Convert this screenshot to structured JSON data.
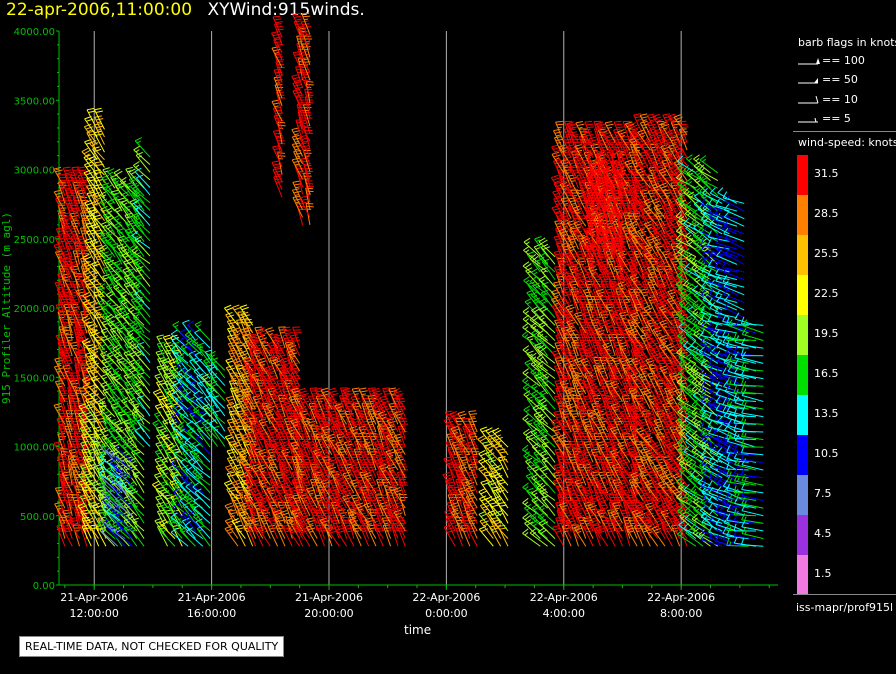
{
  "header": {
    "datetime": "22-apr-2006,11:00:00",
    "product": "XYWind:915winds."
  },
  "chart_data": {
    "type": "wind-barb",
    "xlabel": "time",
    "ylabel": "915 Profiler Altitude (m agl)",
    "ylim": [
      0,
      4000
    ],
    "yticks": [
      {
        "value": 0,
        "label": "0.00"
      },
      {
        "value": 500,
        "label": "500.00"
      },
      {
        "value": 1000,
        "label": "1000.00"
      },
      {
        "value": 1500,
        "label": "1500.00"
      },
      {
        "value": 2000,
        "label": "2000.00"
      },
      {
        "value": 2500,
        "label": "2500.00"
      },
      {
        "value": 3000,
        "label": "3000.00"
      },
      {
        "value": 3500,
        "label": "3500.00"
      },
      {
        "value": 4000,
        "label": "4000.00"
      }
    ],
    "xlim_hours": [
      10.8,
      35.3
    ],
    "xticks": [
      {
        "hours": 12,
        "date": "21-Apr-2006",
        "time": "12:00:00"
      },
      {
        "hours": 16,
        "date": "21-Apr-2006",
        "time": "16:00:00"
      },
      {
        "hours": 20,
        "date": "21-Apr-2006",
        "time": "20:00:00"
      },
      {
        "hours": 24,
        "date": "22-Apr-2006",
        "time": "0:00:00"
      },
      {
        "hours": 28,
        "date": "22-Apr-2006",
        "time": "4:00:00"
      },
      {
        "hours": 32,
        "date": "22-Apr-2006",
        "time": "8:00:00"
      }
    ],
    "grid": "vertical",
    "wind_regions": [
      {
        "h0": 11.0,
        "h1": 11.8,
        "z0": 280,
        "z1": 2900,
        "speed": 31,
        "dir": 200
      },
      {
        "h0": 11.9,
        "h1": 12.6,
        "z0": 280,
        "z1": 1200,
        "speed": 22,
        "dir": 210
      },
      {
        "h0": 12.1,
        "h1": 12.5,
        "z0": 1200,
        "z1": 3300,
        "speed": 24,
        "dir": 215
      },
      {
        "h0": 12.7,
        "h1": 13.7,
        "z0": 280,
        "z1": 2900,
        "speed": 18,
        "dir": 220
      },
      {
        "h0": 12.8,
        "h1": 13.3,
        "z0": 280,
        "z1": 900,
        "speed": 10,
        "dir": 230
      },
      {
        "h0": 13.9,
        "h1": 14.1,
        "z0": 1000,
        "z1": 3100,
        "speed": 17,
        "dir": 225
      },
      {
        "h0": 14.5,
        "h1": 15.0,
        "z0": 280,
        "z1": 1700,
        "speed": 20,
        "dir": 215
      },
      {
        "h0": 15.2,
        "h1": 16.0,
        "z0": 280,
        "z1": 1800,
        "speed": 14,
        "dir": 225
      },
      {
        "h0": 16.2,
        "h1": 16.6,
        "z0": 1000,
        "z1": 1600,
        "speed": 16,
        "dir": 220
      },
      {
        "h0": 16.9,
        "h1": 17.4,
        "z0": 280,
        "z1": 1900,
        "speed": 26,
        "dir": 210
      },
      {
        "h0": 17.5,
        "h1": 19.0,
        "z0": 280,
        "z1": 1750,
        "speed": 31,
        "dir": 205
      },
      {
        "h0": 18.4,
        "h1": 18.6,
        "z0": 2800,
        "z1": 4000,
        "speed": 31,
        "dir": 200
      },
      {
        "h0": 19.1,
        "h1": 19.5,
        "z0": 2600,
        "z1": 4000,
        "speed": 31,
        "dir": 200
      },
      {
        "h0": 19.1,
        "h1": 22.7,
        "z0": 280,
        "z1": 1300,
        "speed": 31,
        "dir": 205
      },
      {
        "h0": 24.3,
        "h1": 25.2,
        "z0": 280,
        "z1": 1150,
        "speed": 31,
        "dir": 205
      },
      {
        "h0": 25.6,
        "h1": 26.3,
        "z0": 280,
        "z1": 1000,
        "speed": 23,
        "dir": 215
      },
      {
        "h0": 27.2,
        "h1": 27.9,
        "z0": 280,
        "z1": 2400,
        "speed": 18,
        "dir": 225
      },
      {
        "h0": 28.0,
        "h1": 30.6,
        "z0": 280,
        "z1": 3200,
        "speed": 31,
        "dir": 205
      },
      {
        "h0": 29.0,
        "h1": 30.2,
        "z0": 2300,
        "z1": 3000,
        "speed": 50,
        "dir": 200
      },
      {
        "h0": 30.7,
        "h1": 32.4,
        "z0": 280,
        "z1": 3300,
        "speed": 31,
        "dir": 210
      },
      {
        "h0": 32.5,
        "h1": 33.3,
        "z0": 280,
        "z1": 3000,
        "speed": 17,
        "dir": 235
      },
      {
        "h0": 33.4,
        "h1": 34.3,
        "z0": 280,
        "z1": 2800,
        "speed": 12,
        "dir": 250
      },
      {
        "h0": 34.3,
        "h1": 35.0,
        "z0": 280,
        "z1": 1900,
        "speed": 14,
        "dir": 260
      }
    ]
  },
  "legend": {
    "barb_title": "barb flags in knots",
    "barb_keys": [
      "== 100",
      "== 50",
      "== 10",
      "== 5"
    ],
    "speed_title": "wind-speed: knots",
    "speed_bins": [
      {
        "label": "31.5",
        "color": "#ff0000"
      },
      {
        "label": "28.5",
        "color": "#ff8000"
      },
      {
        "label": "25.5",
        "color": "#ffc000"
      },
      {
        "label": "22.5",
        "color": "#ffff00"
      },
      {
        "label": "19.5",
        "color": "#a0ff20"
      },
      {
        "label": "16.5",
        "color": "#00e000"
      },
      {
        "label": "13.5",
        "color": "#00ffff"
      },
      {
        "label": "10.5",
        "color": "#0000ff"
      },
      {
        "label": "7.5",
        "color": "#6a8ae0"
      },
      {
        "label": "4.5",
        "color": "#9a30e0"
      },
      {
        "label": "1.5",
        "color": "#f07ae0"
      }
    ],
    "source_id": "iss-mapr/prof915l"
  },
  "notice": "REAL-TIME DATA, NOT CHECKED FOR QUALITY",
  "colors": {
    "axis": "#00c000",
    "grid": "#b0b0b0",
    "date": "#ffff00"
  }
}
